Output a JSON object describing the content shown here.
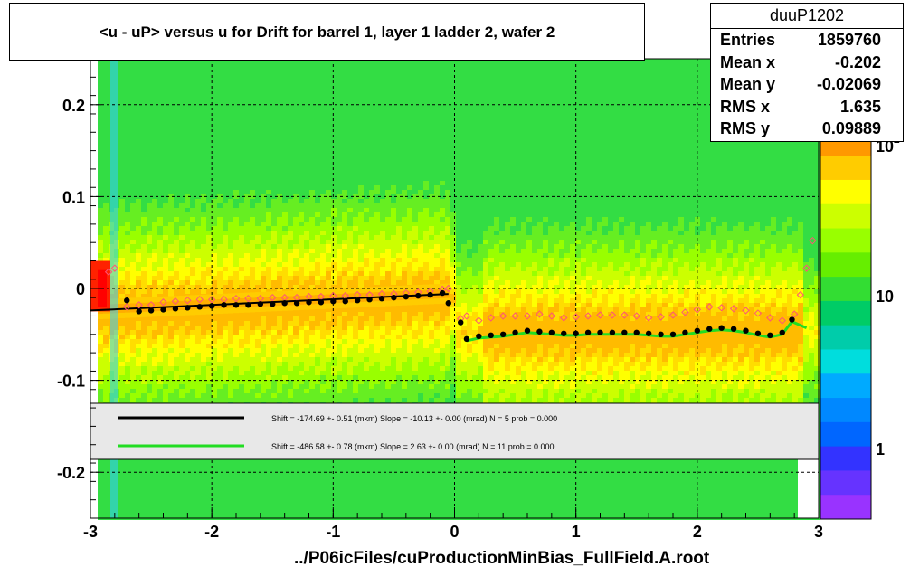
{
  "header": {
    "title": "<u - uP>       versus   u for Drift for barrel 1, layer 1 ladder 2, wafer 2"
  },
  "stats": {
    "name": "duuP1202",
    "rows": [
      {
        "label": "Entries",
        "value": "1859760"
      },
      {
        "label": "Mean x",
        "value": "-0.202"
      },
      {
        "label": "Mean y",
        "value": "-0.02069"
      },
      {
        "label": "RMS x",
        "value": "1.635"
      },
      {
        "label": "RMS y",
        "value": "0.09889"
      }
    ]
  },
  "footer": {
    "text": "../P06icFiles/cuProductionMinBias_FullField.A.root"
  },
  "colors": {
    "fit_black": "#000000",
    "fit_green": "#22dd22",
    "profile_marker": "#ff5577",
    "palette": [
      "#ff0000",
      "#ff3300",
      "#ff6600",
      "#ff9900",
      "#ffcc00",
      "#ffff00",
      "#ccff00",
      "#99ff00",
      "#66ee00",
      "#33dd33",
      "#00cc66",
      "#00ccaa",
      "#00dddd",
      "#00aaff",
      "#0088ff",
      "#0066ff",
      "#3333ff",
      "#6633ff",
      "#9933ff"
    ]
  },
  "chart_data": {
    "type": "heatmap",
    "title": "<u - uP>       versus   u for Drift for barrel 1, layer 1 ladder 2, wafer 2",
    "xlim": [
      -3,
      3
    ],
    "ylim": [
      -0.25,
      0.25
    ],
    "x_ticks": [
      -3,
      -2,
      -1,
      0,
      1,
      2,
      3
    ],
    "x_tick_labels": [
      "-3",
      "-2",
      "-1",
      "0",
      "1",
      "2",
      "3"
    ],
    "y_ticks": [
      -0.2,
      -0.1,
      0,
      0.1,
      0.2
    ],
    "y_tick_labels": [
      "-0.2",
      "-0.1",
      "0",
      "0.1",
      "0.2"
    ],
    "z_scale": "log",
    "z_tick_labels": [
      "1",
      "10",
      "10"
    ],
    "z_tick_exponents": [
      "",
      "",
      "2"
    ],
    "grid": true,
    "legend": {
      "placement": "bottom",
      "entries": [
        {
          "text": "Shift =  -174.69 +- 0.51 (mkm) Slope =   -10.13 +- 0.00 (mrad)  N = 5 prob = 0.000"
        },
        {
          "text": "Shift =  -486.58 +- 0.78 (mkm) Slope =     2.63 +- 0.00 (mrad)  N = 11 prob = 0.000"
        }
      ]
    },
    "series": [
      {
        "marker": "black-filled",
        "x": [
          -2.7,
          -2.6,
          -2.5,
          -2.4,
          -2.3,
          -2.2,
          -2.1,
          -2.0,
          -1.9,
          -1.8,
          -1.7,
          -1.6,
          -1.5,
          -1.4,
          -1.3,
          -1.2,
          -1.1,
          -1.0,
          -0.9,
          -0.8,
          -0.7,
          -0.6,
          -0.5,
          -0.4,
          -0.3,
          -0.2,
          -0.1,
          -0.05,
          0.05,
          0.1,
          0.2,
          0.3,
          0.4,
          0.5,
          0.6,
          0.7,
          0.8,
          0.9,
          1.0,
          1.1,
          1.2,
          1.3,
          1.4,
          1.5,
          1.6,
          1.7,
          1.8,
          1.9,
          2.0,
          2.1,
          2.2,
          2.3,
          2.4,
          2.5,
          2.6,
          2.7,
          2.78
        ],
        "y": [
          -0.013,
          -0.025,
          -0.024,
          -0.023,
          -0.022,
          -0.021,
          -0.02,
          -0.019,
          -0.018,
          -0.018,
          -0.018,
          -0.017,
          -0.017,
          -0.016,
          -0.016,
          -0.015,
          -0.015,
          -0.014,
          -0.014,
          -0.013,
          -0.012,
          -0.011,
          -0.01,
          -0.009,
          -0.008,
          -0.007,
          -0.005,
          -0.016,
          -0.037,
          -0.055,
          -0.052,
          -0.051,
          -0.05,
          -0.048,
          -0.046,
          -0.047,
          -0.048,
          -0.049,
          -0.049,
          -0.048,
          -0.048,
          -0.048,
          -0.048,
          -0.048,
          -0.049,
          -0.05,
          -0.05,
          -0.048,
          -0.046,
          -0.044,
          -0.043,
          -0.044,
          -0.046,
          -0.049,
          -0.051,
          -0.048,
          -0.034
        ]
      },
      {
        "marker": "red-open-diamond",
        "x": [
          -2.85,
          -2.8,
          -2.7,
          -2.6,
          -2.5,
          -2.4,
          -2.3,
          -2.2,
          -2.1,
          -2.0,
          -1.9,
          -1.8,
          -1.7,
          -1.6,
          -1.5,
          -1.4,
          -1.3,
          -1.2,
          -1.1,
          -1.0,
          -0.9,
          -0.8,
          -0.7,
          -0.6,
          -0.5,
          -0.4,
          -0.3,
          -0.2,
          -0.1,
          -0.05,
          0.05,
          0.1,
          0.2,
          0.3,
          0.4,
          0.5,
          0.6,
          0.7,
          0.8,
          0.9,
          1.0,
          1.1,
          1.2,
          1.3,
          1.4,
          1.5,
          1.6,
          1.7,
          1.8,
          1.9,
          2.0,
          2.1,
          2.2,
          2.3,
          2.4,
          2.5,
          2.6,
          2.7,
          2.8,
          2.85,
          2.9,
          2.95
        ],
        "y": [
          0.018,
          0.022,
          -0.02,
          -0.018,
          -0.018,
          -0.015,
          -0.014,
          -0.013,
          -0.012,
          -0.012,
          -0.012,
          -0.011,
          -0.011,
          -0.011,
          -0.01,
          -0.01,
          -0.01,
          -0.009,
          -0.009,
          -0.008,
          -0.008,
          -0.007,
          -0.007,
          -0.006,
          -0.006,
          -0.005,
          -0.004,
          -0.003,
          -0.001,
          0.0,
          -0.033,
          -0.03,
          -0.035,
          -0.032,
          -0.03,
          -0.03,
          -0.03,
          -0.028,
          -0.03,
          -0.032,
          -0.031,
          -0.03,
          -0.029,
          -0.029,
          -0.029,
          -0.03,
          -0.032,
          -0.031,
          -0.029,
          -0.026,
          -0.023,
          -0.02,
          -0.021,
          -0.022,
          -0.024,
          -0.027,
          -0.032,
          -0.035,
          -0.028,
          -0.007,
          0.022,
          0.052
        ]
      }
    ],
    "fits": [
      {
        "color": "black",
        "x_range": [
          -3.0,
          -0.05
        ],
        "y_start": -0.024,
        "y_end": -0.006
      },
      {
        "color": "green",
        "x_range": [
          0.05,
          2.9
        ]
      }
    ]
  }
}
